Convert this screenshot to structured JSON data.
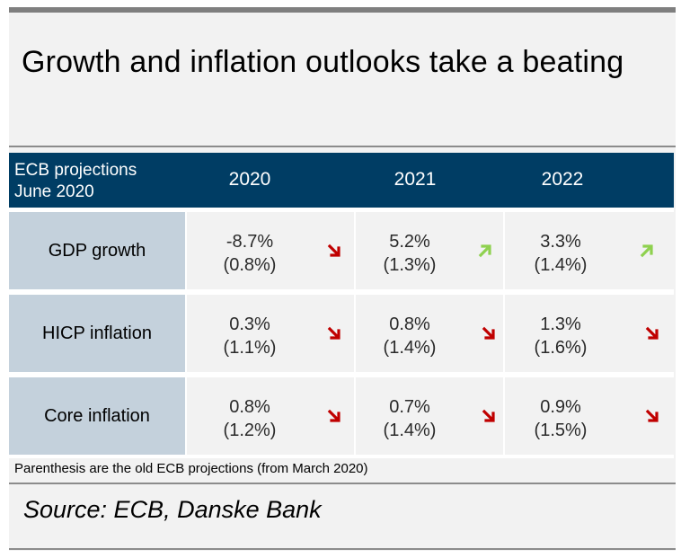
{
  "title": "Growth and inflation outlooks take a beating",
  "table": {
    "header_label_line1": "ECB projections",
    "header_label_line2": "June 2020",
    "years": [
      "2020",
      "2021",
      "2022"
    ],
    "rows": [
      {
        "name": "GDP growth",
        "cells": [
          {
            "value": "-8.7%",
            "old": "(0.8%)",
            "direction": "down"
          },
          {
            "value": "5.2%",
            "old": "(1.3%)",
            "direction": "up"
          },
          {
            "value": "3.3%",
            "old": "(1.4%)",
            "direction": "up"
          }
        ]
      },
      {
        "name": "HICP inflation",
        "cells": [
          {
            "value": "0.3%",
            "old": "(1.1%)",
            "direction": "down"
          },
          {
            "value": "0.8%",
            "old": "(1.4%)",
            "direction": "down"
          },
          {
            "value": "1.3%",
            "old": "(1.6%)",
            "direction": "down"
          }
        ]
      },
      {
        "name": "Core inflation",
        "cells": [
          {
            "value": "0.8%",
            "old": "(1.2%)",
            "direction": "down"
          },
          {
            "value": "0.7%",
            "old": "(1.4%)",
            "direction": "down"
          },
          {
            "value": "0.9%",
            "old": "(1.5%)",
            "direction": "down"
          }
        ]
      }
    ]
  },
  "footnote": "Parenthesis are the old ECB projections (from March 2020)",
  "source": "Source: ECB, Danske Bank",
  "colors": {
    "header_bg": "#003d64",
    "row_label_bg": "#c4d1dc",
    "arrow_down": "#c00000",
    "arrow_up": "#8fd14f"
  }
}
